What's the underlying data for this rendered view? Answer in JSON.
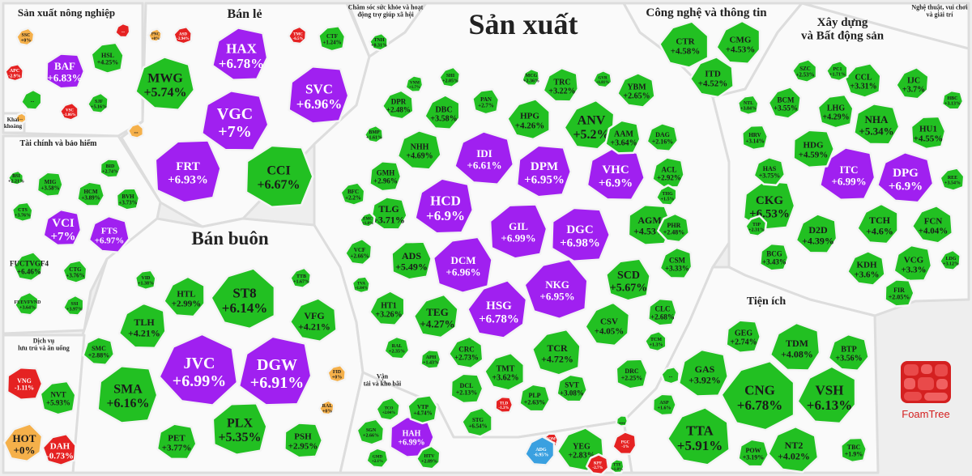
{
  "chart_data": {
    "type": "treemap",
    "title": "Sản xuất",
    "legend_colors": {
      "ceiling": "#a020f0",
      "up": "#22c022",
      "up_light": "#4cd44c",
      "flat": "#f5b04a",
      "down": "#e52222",
      "floor": "#3aa0e0"
    },
    "sectors": [
      {
        "name": "Sản xuất nông nghiệp",
        "stocks": [
          {
            "t": "BAF",
            "c": "+6.83%",
            "s": "ceiling"
          },
          {
            "t": "HSL",
            "c": "+4.25%",
            "s": "up"
          },
          {
            "t": "SSC",
            "c": "+0%",
            "s": "flat"
          },
          {
            "t": "APC",
            "c": "-2.9%",
            "s": "down"
          },
          {
            "t": "SJF",
            "c": "+5.16%",
            "s": "up"
          },
          {
            "t": "VSC",
            "c": "-1.06%",
            "s": "down"
          },
          {
            "t": "...",
            "c": "",
            "s": "up"
          },
          {
            "t": "...",
            "c": "",
            "s": "flat"
          },
          {
            "t": "...",
            "c": "",
            "s": "down"
          }
        ]
      },
      {
        "name": "Bán lẻ",
        "stocks": [
          {
            "t": "HAX",
            "c": "+6.78%",
            "s": "ceiling"
          },
          {
            "t": "MWG",
            "c": "+5.74%",
            "s": "up"
          },
          {
            "t": "SVC",
            "c": "+6.96%",
            "s": "ceiling"
          },
          {
            "t": "VGC",
            "c": "+7%",
            "s": "ceiling"
          },
          {
            "t": "FRT",
            "c": "+6.93%",
            "s": "ceiling"
          },
          {
            "t": "CCI",
            "c": "+6.67%",
            "s": "up"
          },
          {
            "t": "CTF",
            "c": "+1.24%",
            "s": "up"
          },
          {
            "t": "PNC",
            "c": "+0%",
            "s": "flat"
          },
          {
            "t": "ASD",
            "c": "-2.94%",
            "s": "down"
          },
          {
            "t": "TMC",
            "c": "-6.5%",
            "s": "down"
          },
          {
            "t": "...",
            "c": "",
            "s": "flat"
          }
        ]
      },
      {
        "name": "Chăm sóc sức khỏe và hoạt động trợ giúp xã hội",
        "stocks": [
          {
            "t": "TNH",
            "c": "+0.31%",
            "s": "up"
          }
        ]
      },
      {
        "name": "Khai khoáng",
        "stocks": []
      },
      {
        "name": "Tài chính và bảo hiểm",
        "stocks": [
          {
            "t": "VCI",
            "c": "+7%",
            "s": "ceiling"
          },
          {
            "t": "FTS",
            "c": "+6.97%",
            "s": "ceiling"
          },
          {
            "t": "MIG",
            "c": "+3.58%",
            "s": "up"
          },
          {
            "t": "HCM",
            "c": "+3.89%",
            "s": "up"
          },
          {
            "t": "BVH",
            "c": "+3.73%",
            "s": "up"
          },
          {
            "t": "BID",
            "c": "+2.74%",
            "s": "up"
          },
          {
            "t": "CTS",
            "c": "+3.76%",
            "s": "up"
          },
          {
            "t": "FUCTVGF4",
            "c": "+6.46%",
            "s": "up"
          },
          {
            "t": "CTG",
            "c": "+3.76%",
            "s": "up"
          },
          {
            "t": "FUEVFVND",
            "c": "+3.64%",
            "s": "up"
          },
          {
            "t": "BSI",
            "c": "+2.21%",
            "s": "up"
          },
          {
            "t": "SSI",
            "c": "+3.97%",
            "s": "up"
          }
        ]
      },
      {
        "name": "Bán buôn",
        "stocks": [
          {
            "t": "ST8",
            "c": "+6.14%",
            "s": "up"
          },
          {
            "t": "HTL",
            "c": "+2.99%",
            "s": "up"
          },
          {
            "t": "VFG",
            "c": "+4.21%",
            "s": "up"
          },
          {
            "t": "TLH",
            "c": "+4.21%",
            "s": "up"
          },
          {
            "t": "JVC",
            "c": "+6.99%",
            "s": "ceiling"
          },
          {
            "t": "DGW",
            "c": "+6.91%",
            "s": "ceiling"
          },
          {
            "t": "SMC",
            "c": "+2.88%",
            "s": "up"
          },
          {
            "t": "SMA",
            "c": "+6.16%",
            "s": "up"
          },
          {
            "t": "PET",
            "c": "+3.77%",
            "s": "up"
          },
          {
            "t": "PLX",
            "c": "+5.35%",
            "s": "up"
          },
          {
            "t": "PSH",
            "c": "+2.95%",
            "s": "up"
          },
          {
            "t": "VID",
            "c": "+1.38%",
            "s": "up"
          },
          {
            "t": "TTB",
            "c": "+1.67%",
            "s": "up"
          },
          {
            "t": "FID",
            "c": "+0%",
            "s": "flat"
          },
          {
            "t": "RAL",
            "c": "+0%",
            "s": "flat"
          }
        ]
      },
      {
        "name": "Dịch vụ lưu trú và ăn uống",
        "stocks": [
          {
            "t": "VNG",
            "c": "-1.11%",
            "s": "down"
          },
          {
            "t": "NVT",
            "c": "+5.93%",
            "s": "up"
          },
          {
            "t": "HOT",
            "c": "+0%",
            "s": "flat"
          },
          {
            "t": "DAH",
            "c": "-0.73%",
            "s": "down"
          }
        ]
      },
      {
        "name": "Sản xuất",
        "stocks": [
          {
            "t": "HCD",
            "c": "+6.9%",
            "s": "ceiling"
          },
          {
            "t": "IDI",
            "c": "+6.61%",
            "s": "ceiling"
          },
          {
            "t": "DPM",
            "c": "+6.95%",
            "s": "ceiling"
          },
          {
            "t": "VHC",
            "c": "+6.9%",
            "s": "ceiling"
          },
          {
            "t": "GIL",
            "c": "+6.99%",
            "s": "ceiling"
          },
          {
            "t": "DGC",
            "c": "+6.98%",
            "s": "ceiling"
          },
          {
            "t": "DCM",
            "c": "+6.96%",
            "s": "ceiling"
          },
          {
            "t": "HSG",
            "c": "+6.78%",
            "s": "ceiling"
          },
          {
            "t": "NKG",
            "c": "+6.95%",
            "s": "ceiling"
          },
          {
            "t": "ANV",
            "c": "+5.2%",
            "s": "up"
          },
          {
            "t": "HPG",
            "c": "+4.26%",
            "s": "up"
          },
          {
            "t": "DBC",
            "c": "+3.58%",
            "s": "up"
          },
          {
            "t": "DPR",
            "c": "+2.48%",
            "s": "up"
          },
          {
            "t": "TRC",
            "c": "+3.22%",
            "s": "up"
          },
          {
            "t": "YBM",
            "c": "+2.65%",
            "s": "up"
          },
          {
            "t": "AAM",
            "c": "+3.64%",
            "s": "up"
          },
          {
            "t": "NHH",
            "c": "+4.69%",
            "s": "up"
          },
          {
            "t": "GMH",
            "c": "+2.96%",
            "s": "up"
          },
          {
            "t": "TLG",
            "c": "+3.71%",
            "s": "up"
          },
          {
            "t": "ADS",
            "c": "+5.49%",
            "s": "up"
          },
          {
            "t": "AGM",
            "c": "+4.53%",
            "s": "up"
          },
          {
            "t": "SCD",
            "c": "+5.67%",
            "s": "up"
          },
          {
            "t": "TEG",
            "c": "+4.27%",
            "s": "up"
          },
          {
            "t": "TCR",
            "c": "+4.72%",
            "s": "up"
          },
          {
            "t": "CSV",
            "c": "+4.05%",
            "s": "up"
          },
          {
            "t": "TMT",
            "c": "+3.62%",
            "s": "up"
          },
          {
            "t": "HT1",
            "c": "+3.26%",
            "s": "up"
          },
          {
            "t": "CRC",
            "c": "+2.73%",
            "s": "up"
          },
          {
            "t": "CSM",
            "c": "+3.33%",
            "s": "up"
          },
          {
            "t": "PHR",
            "c": "+2.48%",
            "s": "up"
          },
          {
            "t": "ACL",
            "c": "+2.92%",
            "s": "up"
          },
          {
            "t": "DAG",
            "c": "+2.16%",
            "s": "up"
          },
          {
            "t": "CLC",
            "c": "+2.68%",
            "s": "up"
          },
          {
            "t": "SVT",
            "c": "+3.08%",
            "s": "up"
          },
          {
            "t": "DRC",
            "c": "+2.25%",
            "s": "up"
          },
          {
            "t": "DCL",
            "c": "+2.13%",
            "s": "up"
          },
          {
            "t": "PAN",
            "c": "+2.7%",
            "s": "up"
          },
          {
            "t": "SHI",
            "c": "+2.05%",
            "s": "up"
          },
          {
            "t": "BFC",
            "c": "+2.2%",
            "s": "up"
          },
          {
            "t": "VCF",
            "c": "+2.66%",
            "s": "up"
          },
          {
            "t": "TCM",
            "c": "+1.3%",
            "s": "up"
          },
          {
            "t": "THG",
            "c": "+1.5%",
            "s": "up"
          },
          {
            "t": "BMP",
            "c": "+1.61%",
            "s": "up"
          },
          {
            "t": "MCG",
            "c": "+2.36%",
            "s": "up"
          },
          {
            "t": "GVR",
            "c": "+1.81%",
            "s": "up"
          },
          {
            "t": "VNM",
            "c": "+1.7%",
            "s": "up"
          },
          {
            "t": "RAL",
            "c": "+2.35%",
            "s": "up"
          },
          {
            "t": "APH",
            "c": "+1.43%",
            "s": "up"
          },
          {
            "t": "PLP",
            "c": "+2.63%",
            "s": "up"
          },
          {
            "t": "POM",
            "c": "-1.74%",
            "s": "down"
          },
          {
            "t": "TLD",
            "c": "-1.3%",
            "s": "down"
          },
          {
            "t": "TVA",
            "c": "+1.84%",
            "s": "up"
          },
          {
            "t": "EMC",
            "c": "+1.8%",
            "s": "up"
          },
          {
            "t": "...",
            "c": "",
            "s": "up"
          }
        ]
      },
      {
        "name": "Công nghệ và thông tin",
        "stocks": [
          {
            "t": "CTR",
            "c": "+4.58%",
            "s": "up"
          },
          {
            "t": "CMG",
            "c": "+4.53%",
            "s": "up"
          },
          {
            "t": "ITD",
            "c": "+4.52%",
            "s": "up"
          }
        ]
      },
      {
        "name": "Nghệ thuật, vui chơi và giải trí",
        "stocks": []
      },
      {
        "name": "Xây dựng và Bất động sản",
        "stocks": [
          {
            "t": "ITC",
            "c": "+6.99%",
            "s": "ceiling"
          },
          {
            "t": "DPG",
            "c": "+6.9%",
            "s": "ceiling"
          },
          {
            "t": "CKG",
            "c": "+6.53%",
            "s": "up"
          },
          {
            "t": "NHA",
            "c": "+5.34%",
            "s": "up"
          },
          {
            "t": "HU1",
            "c": "+4.55%",
            "s": "up"
          },
          {
            "t": "HDG",
            "c": "+4.59%",
            "s": "up"
          },
          {
            "t": "LHG",
            "c": "+4.29%",
            "s": "up"
          },
          {
            "t": "BCM",
            "c": "+3.55%",
            "s": "up"
          },
          {
            "t": "CCL",
            "c": "+3.31%",
            "s": "up"
          },
          {
            "t": "IJC",
            "c": "+3.7%",
            "s": "up"
          },
          {
            "t": "SZC",
            "c": "+2.53%",
            "s": "up"
          },
          {
            "t": "TCH",
            "c": "+4.6%",
            "s": "up"
          },
          {
            "t": "FCN",
            "c": "+4.04%",
            "s": "up"
          },
          {
            "t": "D2D",
            "c": "+4.39%",
            "s": "up"
          },
          {
            "t": "KDH",
            "c": "+3.6%",
            "s": "up"
          },
          {
            "t": "VCG",
            "c": "+3.3%",
            "s": "up"
          },
          {
            "t": "HAS",
            "c": "+3.75%",
            "s": "up"
          },
          {
            "t": "BCG",
            "c": "+3.43%",
            "s": "up"
          },
          {
            "t": "HBC",
            "c": "+3.13%",
            "s": "up"
          },
          {
            "t": "HRV",
            "c": "+3.14%",
            "s": "up"
          },
          {
            "t": "FIR",
            "c": "+2.05%",
            "s": "up"
          },
          {
            "t": "NTL",
            "c": "+3.84%",
            "s": "up"
          },
          {
            "t": "TIP",
            "c": "+2.31%",
            "s": "up"
          },
          {
            "t": "REE",
            "c": "+3.54%",
            "s": "up"
          },
          {
            "t": "LDG",
            "c": "+3.12%",
            "s": "up"
          },
          {
            "t": "PC1",
            "c": "+1.71%",
            "s": "up"
          }
        ]
      },
      {
        "name": "Tiện ích",
        "stocks": [
          {
            "t": "CNG",
            "c": "+6.78%",
            "s": "up"
          },
          {
            "t": "VSH",
            "c": "+6.13%",
            "s": "up"
          },
          {
            "t": "TTA",
            "c": "+5.91%",
            "s": "up"
          },
          {
            "t": "TDM",
            "c": "+4.08%",
            "s": "up"
          },
          {
            "t": "NT2",
            "c": "+4.02%",
            "s": "up"
          },
          {
            "t": "GAS",
            "c": "+3.92%",
            "s": "up"
          },
          {
            "t": "BTP",
            "c": "+3.56%",
            "s": "up"
          },
          {
            "t": "GEG",
            "c": "+2.74%",
            "s": "up"
          },
          {
            "t": "POW",
            "c": "+3.19%",
            "s": "up"
          },
          {
            "t": "TBC",
            "c": "+1.9%",
            "s": "up"
          },
          {
            "t": "ASP",
            "c": "+1.6%",
            "s": "up"
          }
        ]
      },
      {
        "name": "Vận tải và kho bãi",
        "stocks": [
          {
            "t": "HAH",
            "c": "+6.99%",
            "s": "ceiling"
          },
          {
            "t": "VTP",
            "c": "+4.74%",
            "s": "up"
          },
          {
            "t": "TCO",
            "c": "+2.04%",
            "s": "up"
          },
          {
            "t": "SGN",
            "c": "+2.66%",
            "s": "up"
          },
          {
            "t": "HTV",
            "c": "+2.89%",
            "s": "up"
          },
          {
            "t": "STG",
            "c": "+6.54%",
            "s": "up"
          },
          {
            "t": "ADG",
            "c": "-6.95%",
            "s": "floor"
          },
          {
            "t": "YEG",
            "c": "+2.83%",
            "s": "up"
          },
          {
            "t": "PGC",
            "c": "-1%",
            "s": "down"
          },
          {
            "t": "KPF",
            "c": "-2.7%",
            "s": "down"
          },
          {
            "t": "TTE",
            "c": "+1.8%",
            "s": "up"
          },
          {
            "t": "GMD",
            "c": "+2.1%",
            "s": "up"
          },
          {
            "t": "...",
            "c": "",
            "s": "up"
          }
        ]
      }
    ],
    "footer_logo": "FoamTree"
  }
}
